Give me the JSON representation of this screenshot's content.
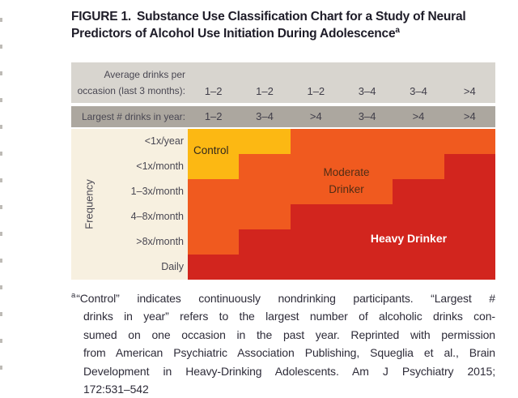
{
  "figure": {
    "title": {
      "label": "FIGURE 1.",
      "line1": "Substance Use Classification Chart for a Study of Neural",
      "line2": "Predictors of Alcohol Use Initiation During Adolescence",
      "marker": "a"
    }
  },
  "header": {
    "avg_label_line1": "Average drinks per",
    "avg_label_line2": "occasion (last 3 months):",
    "avg_values": [
      "1–2",
      "1–2",
      "1–2",
      "3–4",
      "3–4",
      ">4"
    ],
    "largest_label": "Largest # drinks in year:",
    "largest_values": [
      "1–2",
      "3–4",
      ">4",
      "3–4",
      ">4",
      ">4"
    ]
  },
  "axis": {
    "ylabel": "Frequency",
    "rows": [
      "<1x/year",
      "<1x/month",
      "1–3x/month",
      "4–8x/month",
      ">8x/month",
      "Daily"
    ]
  },
  "regions": {
    "control": "Control",
    "moderate_line1": "Moderate",
    "moderate_line2": "Drinker",
    "heavy": "Heavy Drinker"
  },
  "footnote": {
    "marker": "a",
    "lines": [
      "“Control” indicates continuously nondrinking participants. “Largest #",
      "drinks in year” refers to the largest number of alcoholic drinks con-",
      "sumed on one occasion in the past year. Reprinted with permission",
      "from American Psychiatric Association Publishing, Squeglia et al., Brain",
      "Development in Heavy-Drinking Adolescents. Am J Psychiatry 2015;",
      "172:531–542"
    ]
  },
  "colors": {
    "control": "#fcb813",
    "moderate": "#f05a1f",
    "heavy": "#d2251e",
    "header_light_gray": "#d8d5cf",
    "header_dark_gray": "#aca79f",
    "label_beige": "#f7f0e0",
    "heavy_label_text": "#ffffff"
  },
  "chart_data": {
    "type": "heatmap",
    "title": "FIGURE 1. Substance Use Classification Chart for a Study of Neural Predictors of Alcohol Use Initiation During Adolescence",
    "x_axis": {
      "row1_label": "Average drinks per occasion (last 3 months)",
      "row1_values": [
        "1–2",
        "1–2",
        "1–2",
        "3–4",
        "3–4",
        ">4"
      ],
      "row2_label": "Largest # drinks in year",
      "row2_values": [
        "1–2",
        "3–4",
        ">4",
        "3–4",
        ">4",
        ">4"
      ]
    },
    "y_axis": {
      "label": "Frequency",
      "categories": [
        "<1x/year",
        "<1x/month",
        "1–3x/month",
        "4–8x/month",
        ">8x/month",
        "Daily"
      ]
    },
    "legend": {
      "control": "Control",
      "moderate": "Moderate Drinker",
      "heavy": "Heavy Drinker"
    },
    "cells": [
      [
        "control",
        "control",
        "moderate",
        "moderate",
        "moderate",
        "moderate"
      ],
      [
        "control",
        "moderate",
        "moderate",
        "moderate",
        "moderate",
        "heavy"
      ],
      [
        "moderate",
        "moderate",
        "moderate",
        "moderate",
        "heavy",
        "heavy"
      ],
      [
        "moderate",
        "moderate",
        "heavy",
        "heavy",
        "heavy",
        "heavy"
      ],
      [
        "moderate",
        "heavy",
        "heavy",
        "heavy",
        "heavy",
        "heavy"
      ],
      [
        "heavy",
        "heavy",
        "heavy",
        "heavy",
        "heavy",
        "heavy"
      ]
    ]
  }
}
